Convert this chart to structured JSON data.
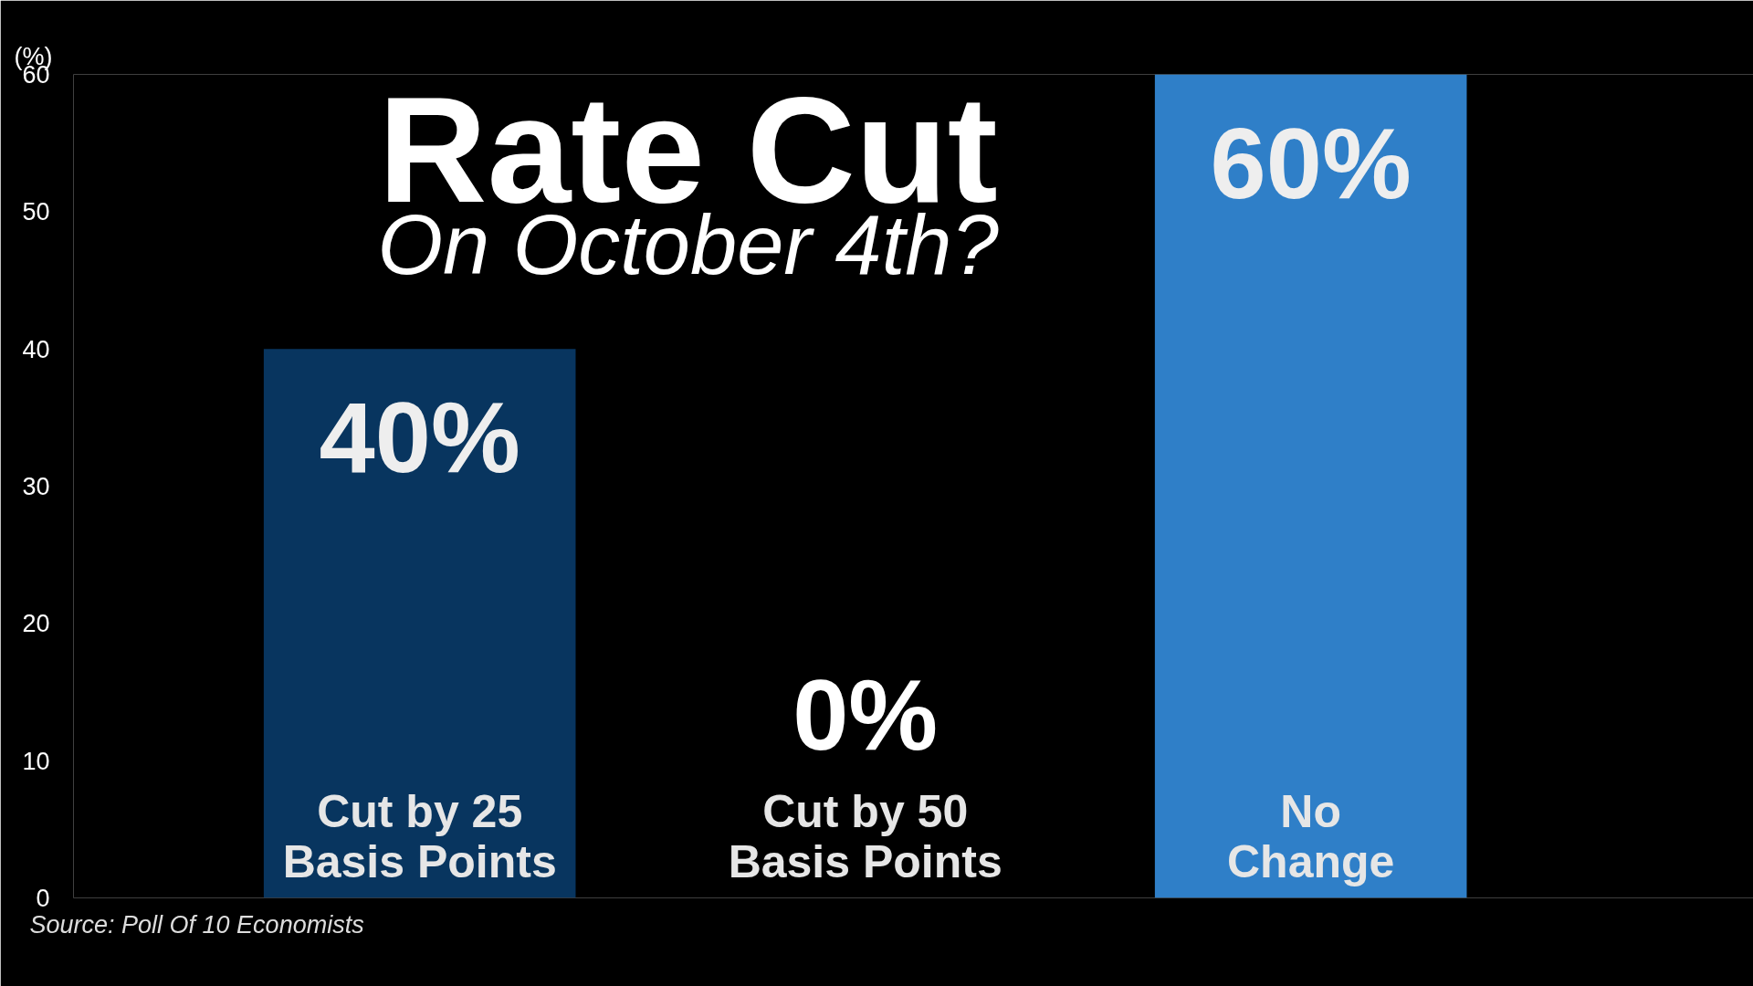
{
  "chart_data": {
    "type": "bar",
    "title": "Rate Cut",
    "subtitle": "On October 4th?",
    "ylabel": "(%)",
    "categories": [
      "Cut by 25 Basis Points",
      "Cut by 50 Basis Points",
      "No Change"
    ],
    "values": [
      40,
      0,
      60
    ],
    "colors": [
      "#08355f",
      "#08355f",
      "#2f7fc8"
    ],
    "value_labels": [
      "40%",
      "0%",
      "60%"
    ],
    "ylim": [
      0,
      60
    ],
    "yticks": [
      0,
      10,
      20,
      30,
      40,
      50,
      60
    ],
    "grid": false,
    "annotations": [
      "Source: Poll Of 10 Economists"
    ]
  }
}
